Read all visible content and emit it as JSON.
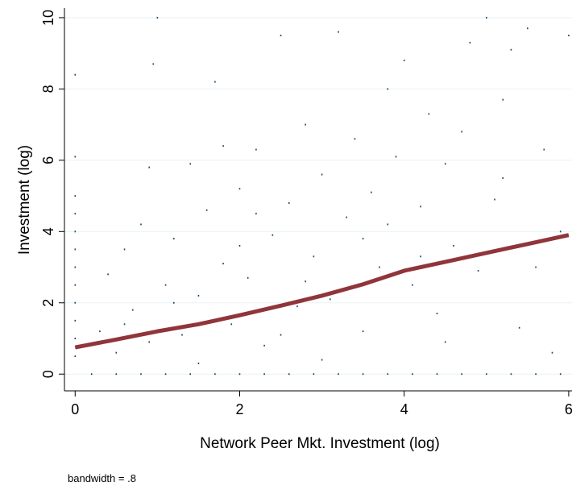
{
  "chart_data": {
    "type": "scatter",
    "xlabel": "Network Peer Mkt. Investment (log)",
    "ylabel": "Investment (log)",
    "note": "bandwidth = .8",
    "xlim": [
      -0.13,
      6.04
    ],
    "ylim": [
      -0.47,
      10.27
    ],
    "xticks": [
      0,
      2,
      4,
      6
    ],
    "yticks": [
      0,
      2,
      4,
      6,
      8,
      10
    ],
    "grid": true,
    "series": [
      {
        "type": "scatter",
        "color": "#1a476f",
        "x": [
          0,
          0,
          0,
          0,
          0,
          0,
          0,
          0,
          0,
          0,
          0,
          0,
          0.2,
          0.5,
          0.8,
          1.1,
          1.4,
          1.7,
          2.0,
          2.3,
          2.6,
          2.9,
          3.2,
          3.5,
          3.8,
          4.1,
          4.4,
          4.7,
          5.0,
          5.3,
          5.6,
          5.9,
          0.3,
          0.4,
          0.5,
          0.6,
          0.7,
          0.8,
          0.9,
          1.0,
          0.95,
          1.1,
          1.2,
          1.3,
          1.4,
          1.5,
          1.6,
          1.7,
          1.8,
          1.9,
          2.0,
          2.1,
          2.2,
          2.3,
          2.4,
          2.5,
          2.6,
          2.7,
          2.8,
          2.9,
          3.0,
          3.1,
          3.2,
          3.3,
          3.4,
          3.5,
          3.6,
          3.7,
          3.8,
          3.9,
          4.0,
          4.1,
          4.2,
          4.3,
          4.4,
          4.5,
          4.6,
          4.7,
          4.8,
          4.9,
          5.0,
          5.1,
          5.2,
          5.3,
          5.4,
          5.5,
          5.6,
          5.7,
          5.8,
          5.9,
          6.0,
          3.0,
          2.5,
          1.5,
          4.5,
          3.5,
          2.2,
          1.2,
          0.6,
          2.8,
          3.8,
          4.2,
          5.2,
          1.8,
          0.9,
          2.0
        ],
        "values": [
          0.5,
          1,
          1.5,
          2,
          2.5,
          3,
          3.5,
          4,
          4.5,
          5,
          8.4,
          6.1,
          0,
          0,
          0,
          0,
          0,
          0,
          0,
          0,
          0,
          0,
          0,
          0,
          0,
          0,
          0,
          0,
          0,
          0,
          0,
          0,
          1.2,
          2.8,
          0.6,
          3.5,
          1.8,
          4.2,
          0.9,
          10,
          8.7,
          2.5,
          3.8,
          1.1,
          5.9,
          2.2,
          4.6,
          8.2,
          3.1,
          1.4,
          5.2,
          2.7,
          6.3,
          0.8,
          3.9,
          9.5,
          4.8,
          1.9,
          7.0,
          3.3,
          5.6,
          2.1,
          9.6,
          4.4,
          6.6,
          1.2,
          5.1,
          3.0,
          8.0,
          6.1,
          8.8,
          2.5,
          4.7,
          7.3,
          1.7,
          5.9,
          3.6,
          6.8,
          9.3,
          2.9,
          10,
          4.9,
          7.7,
          9.1,
          1.3,
          9.7,
          3.0,
          6.3,
          0.6,
          4.0,
          9.5,
          0.4,
          1.1,
          0.3,
          0.9,
          3.8,
          4.5,
          2.0,
          1.4,
          2.6,
          4.2,
          3.3,
          5.5,
          6.4,
          5.8,
          3.6
        ]
      },
      {
        "type": "line",
        "color": "#90353b",
        "x": [
          0,
          0.5,
          1,
          1.5,
          2,
          2.5,
          3,
          3.5,
          4,
          4.5,
          5,
          5.5,
          6
        ],
        "values": [
          0.75,
          0.97,
          1.2,
          1.4,
          1.65,
          1.92,
          2.2,
          2.52,
          2.9,
          3.15,
          3.4,
          3.65,
          3.9
        ]
      }
    ]
  }
}
